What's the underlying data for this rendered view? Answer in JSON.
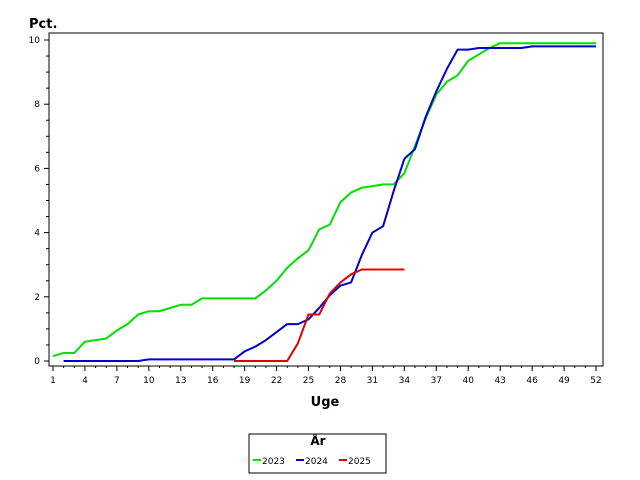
{
  "chart_data": {
    "type": "line",
    "title": "",
    "xlabel": "Uge",
    "ylabel": "Pct.",
    "xlim": [
      1,
      52
    ],
    "ylim": [
      0,
      10
    ],
    "x_ticks": [
      1,
      4,
      7,
      10,
      13,
      16,
      19,
      22,
      25,
      28,
      31,
      34,
      37,
      40,
      43,
      46,
      49,
      52
    ],
    "y_ticks": [
      0,
      2,
      4,
      6,
      8,
      10
    ],
    "grid": false,
    "legend": {
      "title": "År",
      "placement": "bottom-center"
    },
    "series": [
      {
        "name": "2023",
        "color": "#00e000",
        "x": [
          1,
          2,
          3,
          4,
          5,
          6,
          7,
          8,
          9,
          10,
          11,
          12,
          13,
          14,
          15,
          16,
          17,
          18,
          19,
          20,
          21,
          22,
          23,
          24,
          25,
          26,
          27,
          28,
          29,
          30,
          31,
          32,
          33,
          34,
          35,
          36,
          37,
          38,
          39,
          40,
          41,
          42,
          43,
          44,
          45,
          46,
          47,
          48,
          49,
          50,
          51,
          52
        ],
        "values": [
          0.15,
          0.25,
          0.25,
          0.6,
          0.65,
          0.7,
          0.95,
          1.15,
          1.45,
          1.55,
          1.55,
          1.65,
          1.75,
          1.75,
          1.95,
          1.95,
          1.95,
          1.95,
          1.95,
          1.95,
          2.2,
          2.5,
          2.9,
          3.2,
          3.45,
          4.1,
          4.25,
          4.95,
          5.25,
          5.4,
          5.45,
          5.5,
          5.5,
          5.85,
          6.7,
          7.55,
          8.3,
          8.7,
          8.9,
          9.35,
          9.55,
          9.75,
          9.9,
          9.9,
          9.9,
          9.9,
          9.9,
          9.9,
          9.9,
          9.9,
          9.9,
          9.9
        ]
      },
      {
        "name": "2024",
        "color": "#0000cc",
        "x": [
          2,
          3,
          4,
          5,
          6,
          7,
          8,
          9,
          10,
          11,
          12,
          13,
          14,
          15,
          16,
          17,
          18,
          19,
          20,
          21,
          22,
          23,
          24,
          25,
          26,
          27,
          28,
          29,
          30,
          31,
          32,
          33,
          34,
          35,
          36,
          37,
          38,
          39,
          40,
          41,
          42,
          43,
          44,
          45,
          46,
          47,
          48,
          49,
          50,
          51,
          52
        ],
        "values": [
          0.0,
          0.0,
          0.0,
          0.0,
          0.0,
          0.0,
          0.0,
          0.0,
          0.05,
          0.05,
          0.05,
          0.05,
          0.05,
          0.05,
          0.05,
          0.05,
          0.05,
          0.3,
          0.45,
          0.65,
          0.9,
          1.15,
          1.15,
          1.3,
          1.65,
          2.05,
          2.35,
          2.45,
          3.3,
          4.0,
          4.2,
          5.3,
          6.3,
          6.6,
          7.6,
          8.4,
          9.1,
          9.7,
          9.7,
          9.75,
          9.75,
          9.75,
          9.75,
          9.75,
          9.8,
          9.8,
          9.8,
          9.8,
          9.8,
          9.8,
          9.8
        ]
      },
      {
        "name": "2025",
        "color": "#e00000",
        "x": [
          18,
          19,
          20,
          21,
          22,
          23,
          24,
          25,
          26,
          27,
          28,
          29,
          30,
          31,
          32,
          33,
          34
        ],
        "values": [
          0.0,
          0.0,
          0.0,
          0.0,
          0.0,
          0.0,
          0.55,
          1.45,
          1.45,
          2.1,
          2.45,
          2.7,
          2.85,
          2.85,
          2.85,
          2.85,
          2.85
        ]
      }
    ]
  }
}
